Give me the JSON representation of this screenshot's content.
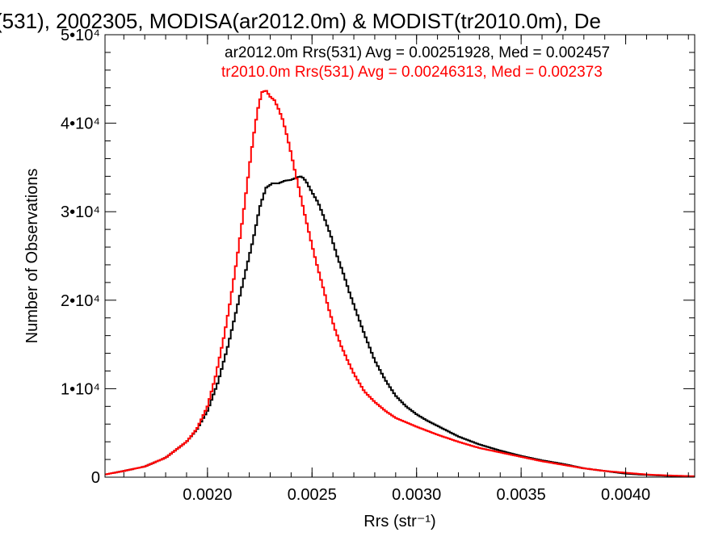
{
  "chart_data": {
    "type": "line",
    "title": "(531), 2002305, MODISA(ar2012.0m) & MODIST(tr2010.0m), De",
    "xlabel": "Rrs (str⁻¹)",
    "ylabel": "Number of Observations",
    "xlim": [
      0.00151,
      0.00433
    ],
    "ylim": [
      0,
      50000
    ],
    "x_ticks": [
      {
        "value": 0.002,
        "label": "0.0020"
      },
      {
        "value": 0.0025,
        "label": "0.0025"
      },
      {
        "value": 0.003,
        "label": "0.0030"
      },
      {
        "value": 0.0035,
        "label": "0.0035"
      },
      {
        "value": 0.004,
        "label": "0.0040"
      }
    ],
    "y_ticks": [
      {
        "value": 0,
        "label": "0"
      },
      {
        "value": 10000,
        "label": "1•10⁴"
      },
      {
        "value": 20000,
        "label": "2•10⁴"
      },
      {
        "value": 30000,
        "label": "3•10⁴"
      },
      {
        "value": 40000,
        "label": "4•10⁴"
      },
      {
        "value": 50000,
        "label": "5•10⁴"
      }
    ],
    "grid": false,
    "legend_placement": "top-right",
    "series": [
      {
        "name": "ar2012.0m Rrs(531) Avg = 0.00251928, Med = 0.002457",
        "color": "#000000",
        "x": [
          0.00151,
          0.0016,
          0.0017,
          0.0018,
          0.0019,
          0.00195,
          0.002,
          0.00205,
          0.0021,
          0.00213,
          0.00216,
          0.00219,
          0.00222,
          0.00225,
          0.00228,
          0.00231,
          0.00234,
          0.00237,
          0.0024,
          0.00243,
          0.00245,
          0.00247,
          0.0025,
          0.00253,
          0.00256,
          0.00259,
          0.00262,
          0.00265,
          0.00268,
          0.00271,
          0.00275,
          0.0028,
          0.00285,
          0.0029,
          0.00295,
          0.003,
          0.00305,
          0.0031,
          0.0032,
          0.0033,
          0.0034,
          0.0035,
          0.0036,
          0.0037,
          0.0038,
          0.0039,
          0.004,
          0.0041,
          0.0042,
          0.00433
        ],
        "y": [
          300,
          700,
          1200,
          2200,
          4000,
          5400,
          7500,
          10700,
          15000,
          18000,
          21000,
          24000,
          27000,
          30500,
          32700,
          33200,
          33200,
          33500,
          33600,
          33900,
          34000,
          33500,
          32200,
          31000,
          29200,
          27300,
          25000,
          23000,
          20800,
          18800,
          16200,
          13200,
          11000,
          9200,
          8000,
          7100,
          6400,
          5800,
          4600,
          3700,
          3000,
          2400,
          1900,
          1500,
          1000,
          700,
          400,
          250,
          150,
          80
        ]
      },
      {
        "name": "tr2010.0m Rrs(531) Avg = 0.00246313, Med = 0.002373",
        "color": "#ff0000",
        "x": [
          0.00151,
          0.0016,
          0.0017,
          0.0018,
          0.0019,
          0.00195,
          0.002,
          0.00204,
          0.00208,
          0.00211,
          0.00214,
          0.00217,
          0.0022,
          0.00222,
          0.00224,
          0.00226,
          0.00228,
          0.0023,
          0.00232,
          0.00234,
          0.00236,
          0.00238,
          0.0024,
          0.00242,
          0.00244,
          0.00246,
          0.00248,
          0.0025,
          0.00252,
          0.00255,
          0.00258,
          0.00261,
          0.00264,
          0.00267,
          0.0027,
          0.00275,
          0.0028,
          0.00285,
          0.0029,
          0.003,
          0.0031,
          0.0032,
          0.0033,
          0.0034,
          0.0035,
          0.0036,
          0.0037,
          0.0038,
          0.0039,
          0.004,
          0.0041,
          0.0042,
          0.00433
        ],
        "y": [
          300,
          700,
          1200,
          2200,
          4000,
          5500,
          8000,
          11500,
          16000,
          20000,
          24500,
          29500,
          35000,
          38500,
          41500,
          43500,
          43700,
          43000,
          42600,
          41600,
          40400,
          38600,
          36600,
          34400,
          32400,
          30200,
          28200,
          26200,
          24300,
          21700,
          19000,
          16700,
          14800,
          13200,
          11700,
          9700,
          8500,
          7500,
          6700,
          5700,
          4800,
          4000,
          3300,
          2800,
          2300,
          1800,
          1400,
          1000,
          700,
          500,
          300,
          200,
          100
        ]
      }
    ]
  }
}
